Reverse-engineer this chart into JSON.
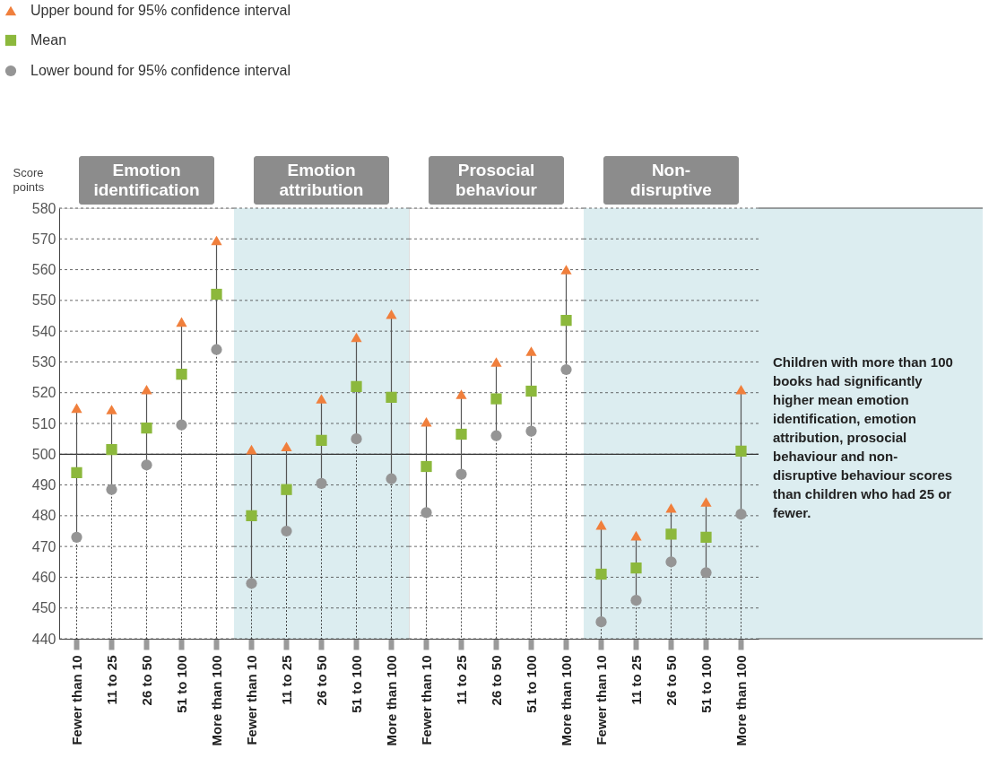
{
  "chart_data": [
    {
      "type": "scatter",
      "title": "Emotion identification",
      "ylabel": "Score points",
      "legend": "top left",
      "categories": [
        "Fewer than 10",
        "11 to 25",
        "26 to 50",
        "51 to 100",
        "More than 100"
      ],
      "ylim": [
        440,
        580
      ],
      "yticks": [
        440,
        450,
        460,
        470,
        480,
        490,
        500,
        510,
        520,
        530,
        540,
        550,
        560,
        570,
        580
      ],
      "grid": "y",
      "ref_lines": [
        {
          "axis": "y",
          "value": 500,
          "color": "#333333"
        }
      ],
      "series": [
        {
          "name": "Upper bound for 95% confidence interval",
          "color": "#f07f3c",
          "marker": "triangle",
          "values": [
            515,
            514.5,
            521,
            543,
            569.5
          ]
        },
        {
          "name": "Mean",
          "color": "#8cb83c",
          "marker": "square",
          "values": [
            494,
            501.5,
            508.5,
            526,
            552
          ]
        },
        {
          "name": "Lower bound for 95% confidence interval",
          "color": "#959595",
          "marker": "circle",
          "values": [
            473,
            488.5,
            496.5,
            509.5,
            534
          ]
        }
      ]
    },
    {
      "type": "scatter",
      "title": "Emotion attribution",
      "tick_labels": "x",
      "categories": [
        "Fewer than 10",
        "11 to 25",
        "26 to 50",
        "51 to 100",
        "More than 100"
      ],
      "ylim": [
        440,
        580
      ],
      "yticks": [
        440,
        450,
        460,
        470,
        480,
        490,
        500,
        510,
        520,
        530,
        540,
        550,
        560,
        570,
        580
      ],
      "grid": "y",
      "ref_lines": [
        {
          "axis": "y",
          "value": 500,
          "color": "#333333"
        }
      ],
      "bands": [
        {
          "axis": "y",
          "from": 440,
          "to": 580,
          "color": "#dcedf0"
        }
      ],
      "series": [
        {
          "color": "#f07f3c",
          "marker": "triangle",
          "values": [
            501.5,
            502.5,
            518,
            538,
            545.5
          ]
        },
        {
          "color": "#8cb83c",
          "marker": "square",
          "values": [
            480,
            488.5,
            504.5,
            522,
            518.5
          ]
        },
        {
          "color": "#959595",
          "marker": "circle",
          "values": [
            458,
            475,
            490.5,
            505,
            492
          ]
        }
      ]
    },
    {
      "type": "scatter",
      "title": "Prosocial behaviour",
      "tick_labels": "x",
      "categories": [
        "Fewer than 10",
        "11 to 25",
        "26 to 50",
        "51 to 100",
        "More than 100"
      ],
      "ylim": [
        440,
        580
      ],
      "yticks": [
        440,
        450,
        460,
        470,
        480,
        490,
        500,
        510,
        520,
        530,
        540,
        550,
        560,
        570,
        580
      ],
      "grid": "y",
      "ref_lines": [
        {
          "axis": "y",
          "value": 500,
          "color": "#333333"
        }
      ],
      "series": [
        {
          "color": "#f07f3c",
          "marker": "triangle",
          "values": [
            510.5,
            519.5,
            530,
            533.5,
            560
          ]
        },
        {
          "color": "#8cb83c",
          "marker": "square",
          "values": [
            496,
            506.5,
            518,
            520.5,
            543.5
          ]
        },
        {
          "color": "#959595",
          "marker": "circle",
          "values": [
            481,
            493.5,
            506,
            507.5,
            527.5
          ]
        }
      ]
    },
    {
      "type": "scatter",
      "title": "Non-disruptive",
      "tick_labels": "x",
      "categories": [
        "Fewer than 10",
        "11 to 25",
        "26 to 50",
        "51 to 100",
        "More than 100"
      ],
      "ylim": [
        440,
        580
      ],
      "yticks": [
        440,
        450,
        460,
        470,
        480,
        490,
        500,
        510,
        520,
        530,
        540,
        550,
        560,
        570,
        580
      ],
      "grid": "y",
      "ref_lines": [
        {
          "axis": "y",
          "value": 500,
          "color": "#333333"
        }
      ],
      "bands": [
        {
          "axis": "y",
          "from": 440,
          "to": 580,
          "color": "#dcedf0"
        }
      ],
      "annotations": [
        "Children with more than 100 books had significantly higher mean emotion identification, emotion attribution, prosocial behaviour and non-disruptive behaviour scores than children who had 25 or fewer."
      ],
      "series": [
        {
          "color": "#f07f3c",
          "marker": "triangle",
          "values": [
            477,
            473.5,
            482.5,
            484.5,
            521
          ]
        },
        {
          "color": "#8cb83c",
          "marker": "square",
          "values": [
            461,
            463,
            474,
            473,
            501
          ]
        },
        {
          "color": "#959595",
          "marker": "circle",
          "values": [
            445.5,
            452.5,
            465,
            461.5,
            480.5
          ]
        }
      ]
    }
  ]
}
